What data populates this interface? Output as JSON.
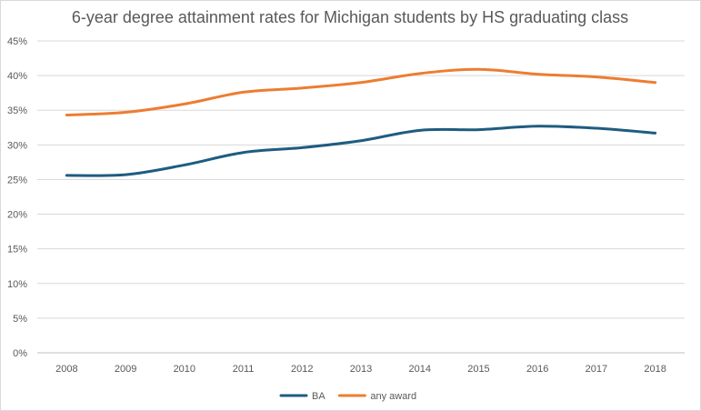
{
  "chart_data": {
    "type": "line",
    "title": "6-year degree attainment rates for Michigan students by HS graduating class",
    "xlabel": "",
    "ylabel": "",
    "x": [
      "2008",
      "2009",
      "2010",
      "2011",
      "2012",
      "2013",
      "2014",
      "2015",
      "2016",
      "2017",
      "2018"
    ],
    "ylim": [
      0,
      45
    ],
    "y_ticks": [
      "0%",
      "5%",
      "10%",
      "15%",
      "20%",
      "25%",
      "30%",
      "35%",
      "40%",
      "45%"
    ],
    "grid": true,
    "legend_position": "bottom",
    "series": [
      {
        "name": "BA",
        "color": "#1f5c80",
        "values": [
          25.6,
          25.7,
          27.1,
          28.9,
          29.6,
          30.6,
          32.1,
          32.2,
          32.7,
          32.4,
          31.7
        ]
      },
      {
        "name": "any award",
        "color": "#ed7d31",
        "values": [
          34.3,
          34.7,
          35.9,
          37.6,
          38.2,
          39.0,
          40.3,
          40.9,
          40.2,
          39.8,
          39.0
        ]
      }
    ]
  }
}
